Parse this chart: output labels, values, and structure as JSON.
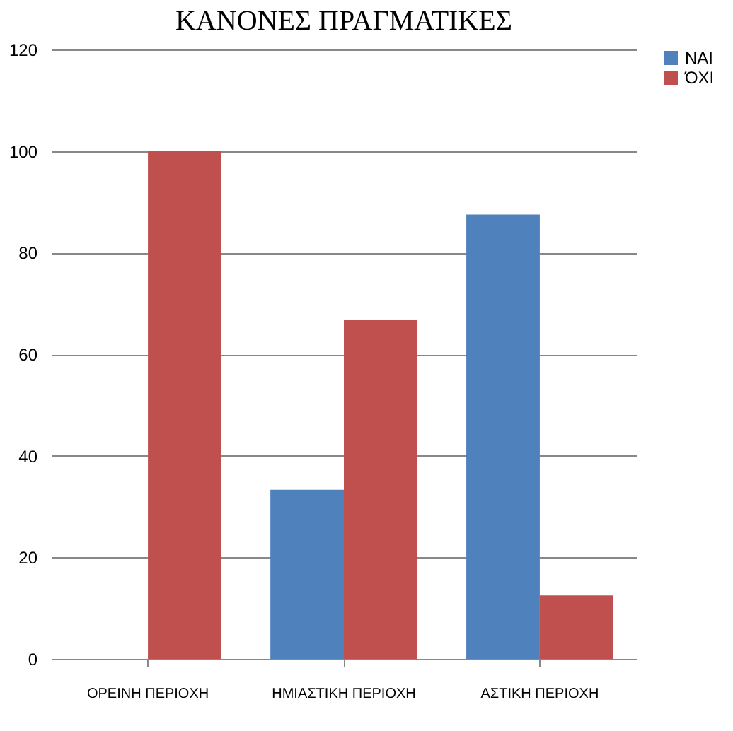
{
  "chart_data": {
    "type": "bar",
    "title": "ΚΑΝΟΝΕΣ ΠΡΑΓΜΑΤΙΚΕΣ",
    "categories": [
      "ΟΡΕΙΝΗ ΠΕΡΙΟΧΗ",
      "ΗΜΙΑΣΤΙΚΗ ΠΕΡΙΟΧΗ",
      "ΑΣΤΙΚΗ ΠΕΡΙΟΧΗ"
    ],
    "series": [
      {
        "name": "ΝΑΙ",
        "color": "#4f81bd",
        "values": [
          0,
          33.3,
          87.5
        ]
      },
      {
        "name": "ΌΧΙ",
        "color": "#c0504d",
        "values": [
          100,
          66.7,
          12.5
        ]
      }
    ],
    "ylim": [
      0,
      120
    ],
    "yticks": [
      0,
      20,
      40,
      60,
      80,
      100,
      120
    ],
    "grid": "y",
    "legend": "right"
  }
}
